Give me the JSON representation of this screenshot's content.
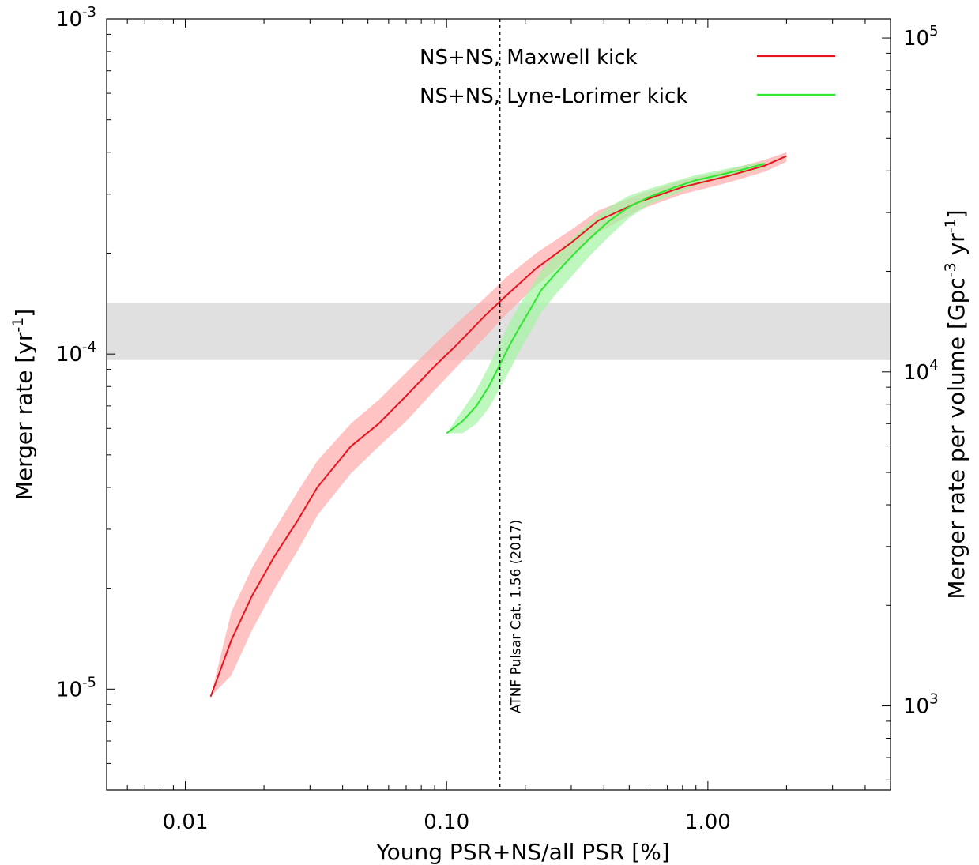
{
  "chart_data": {
    "type": "line",
    "xlabel": "Young PSR+NS/all PSR [%]",
    "ylabel": "Merger rate [yr",
    "ylabel_sup": "-1",
    "ylabel_end": "]",
    "y2label": "Merger rate per volume [Gpc",
    "y2label_sup1": "-3",
    "y2label_mid": " yr",
    "y2label_sup2": "-1",
    "y2label_end": "]",
    "x_scale": "log",
    "y_scale": "log",
    "xlim": [
      0.005,
      5.0
    ],
    "ylim": [
      5e-06,
      0.001
    ],
    "y2lim": [
      560,
      114000
    ],
    "x_ticks": [
      0.01,
      0.1,
      1.0
    ],
    "x_tick_labels": [
      "0.01",
      "0.10",
      "1.00"
    ],
    "y_ticks": [
      1e-05,
      0.0001,
      0.001
    ],
    "y_tick_labels": [
      {
        "base": "10",
        "exp": "-5"
      },
      {
        "base": "10",
        "exp": "-4"
      },
      {
        "base": "10",
        "exp": "-3"
      }
    ],
    "y2_ticks": [
      1000,
      10000,
      100000
    ],
    "y2_tick_labels": [
      {
        "base": "10",
        "exp": "3"
      },
      {
        "base": "10",
        "exp": "4"
      },
      {
        "base": "10",
        "exp": "5"
      }
    ],
    "legend_position": "top-right",
    "grid": false,
    "series": [
      {
        "name": "NS+NS, Maxwell kick",
        "color": "#e8141d",
        "band_color": "#ffaaaa",
        "x": [
          0.0125,
          0.015,
          0.018,
          0.022,
          0.027,
          0.032,
          0.043,
          0.055,
          0.07,
          0.09,
          0.11,
          0.14,
          0.17,
          0.22,
          0.3,
          0.38,
          0.55,
          0.8,
          1.2,
          1.65,
          2.0
        ],
        "y": [
          9.5e-06,
          1.4e-05,
          1.9e-05,
          2.5e-05,
          3.2e-05,
          4e-05,
          5.3e-05,
          6.2e-05,
          7.5e-05,
          9.2e-05,
          0.000107,
          0.00013,
          0.00015,
          0.00018,
          0.000215,
          0.00025,
          0.000285,
          0.000315,
          0.00034,
          0.000365,
          0.00039
        ],
        "lower": [
          9.5e-06,
          1.1e-05,
          1.5e-05,
          2e-05,
          2.6e-05,
          3.3e-05,
          4.4e-05,
          5.3e-05,
          6.3e-05,
          7.8e-05,
          9.2e-05,
          0.000112,
          0.000132,
          0.00016,
          0.000195,
          0.00023,
          0.00027,
          0.0003,
          0.000325,
          0.00035,
          0.000375
        ],
        "upper": [
          9.5e-06,
          1.7e-05,
          2.3e-05,
          3e-05,
          3.9e-05,
          4.8e-05,
          6.2e-05,
          7.3e-05,
          8.8e-05,
          0.000107,
          0.000124,
          0.000147,
          0.00017,
          0.0002,
          0.000235,
          0.000268,
          0.0003,
          0.00033,
          0.000355,
          0.00038,
          0.0004
        ]
      },
      {
        "name": "NS+NS, Lyne-Lorimer kick",
        "color": "#2de62d",
        "band_color": "#a3f5a3",
        "x": [
          0.1,
          0.115,
          0.13,
          0.145,
          0.16,
          0.175,
          0.19,
          0.21,
          0.23,
          0.26,
          0.3,
          0.35,
          0.42,
          0.5,
          0.6,
          0.75,
          0.9,
          1.1,
          1.35,
          1.65
        ],
        "y": [
          5.8e-05,
          6.3e-05,
          7e-05,
          8e-05,
          9.3e-05,
          0.000107,
          0.00012,
          0.000137,
          0.000155,
          0.000173,
          0.000195,
          0.00022,
          0.00025,
          0.000275,
          0.000295,
          0.000315,
          0.00033,
          0.000342,
          0.000355,
          0.00037
        ],
        "lower": [
          5.8e-05,
          5.8e-05,
          6.2e-05,
          6.9e-05,
          7.9e-05,
          9e-05,
          0.000102,
          0.000117,
          0.000133,
          0.00015,
          0.00017,
          0.000195,
          0.000225,
          0.000255,
          0.00028,
          0.0003,
          0.000318,
          0.000332,
          0.000345,
          0.00036
        ],
        "upper": [
          5.8e-05,
          6.8e-05,
          7.8e-05,
          9.2e-05,
          0.000108,
          0.000125,
          0.00014,
          0.000158,
          0.000177,
          0.000197,
          0.00022,
          0.000247,
          0.000275,
          0.000297,
          0.000312,
          0.000328,
          0.000342,
          0.000353,
          0.000365,
          0.000375
        ]
      }
    ],
    "horizontal_band": {
      "y_min": 9.6e-05,
      "y_max": 0.000142,
      "color": "#e0e0e0"
    },
    "vertical_line": {
      "x": 0.16,
      "label": "ATNF Pulsar Cat. 1.56 (2017)"
    }
  }
}
